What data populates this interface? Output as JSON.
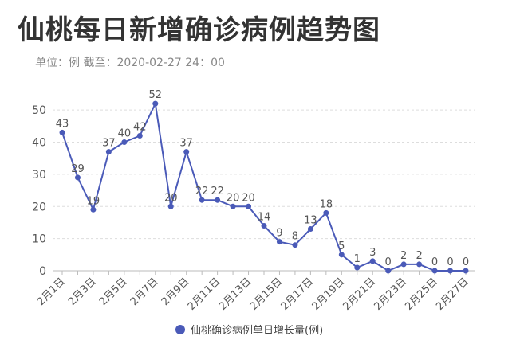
{
  "header": {
    "title": "仙桃每日新增确诊病例趋势图",
    "subtitle": "单位：例 截至：2020-02-27 24：00"
  },
  "chart_data": {
    "type": "line",
    "title": "仙桃每日新增确诊病例趋势图",
    "xlabel": "",
    "ylabel": "",
    "ylim": [
      0,
      55
    ],
    "yticks": [
      0,
      10,
      20,
      30,
      40,
      50
    ],
    "grid": true,
    "legend_position": "bottom-center",
    "x": [
      "2月1日",
      "2月2日",
      "2月3日",
      "2月4日",
      "2月5日",
      "2月6日",
      "2月7日",
      "2月8日",
      "2月9日",
      "2月10日",
      "2月11日",
      "2月12日",
      "2月13日",
      "2月14日",
      "2月15日",
      "2月16日",
      "2月17日",
      "2月18日",
      "2月19日",
      "2月20日",
      "2月21日",
      "2月22日",
      "2月23日",
      "2月24日",
      "2月25日",
      "2月26日",
      "2月27日"
    ],
    "x_tick_labels": [
      "2月1日",
      "2月3日",
      "2月5日",
      "2月7日",
      "2月9日",
      "2月11日",
      "2月13日",
      "2月15日",
      "2月17日",
      "2月19日",
      "2月21日",
      "2月23日",
      "2月25日",
      "2月27日"
    ],
    "series": [
      {
        "name": "仙桃确诊病例单日增长量(例)",
        "color": "#4a5ab8",
        "values": [
          43,
          29,
          19,
          37,
          40,
          42,
          52,
          20,
          37,
          22,
          22,
          20,
          20,
          14,
          9,
          8,
          13,
          18,
          5,
          1,
          3,
          0,
          2,
          2,
          0,
          0,
          0
        ]
      }
    ]
  }
}
